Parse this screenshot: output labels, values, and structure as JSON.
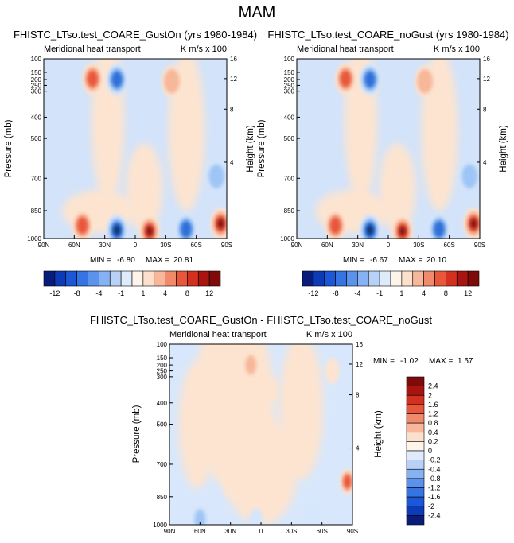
{
  "figure_title": "MAM",
  "colors": {
    "blue_dark": "#08306b",
    "blue_mid": "#2f6fd8",
    "blue_light": "#9ec5f5",
    "blue_pale": "#d6e6fb",
    "white": "#ffffff",
    "red_pale": "#fde4d0",
    "red_light": "#f7b79a",
    "red_mid": "#e8573a",
    "red_dark": "#7f0a0a"
  },
  "chart_data": [
    {
      "type": "heatmap",
      "id": "panel_gust_on",
      "title": "FHISTC_LTso.test_COARE_GustOn (yrs 1980-1984)",
      "left_label": "Meridional heat transport",
      "right_label": "K m/s x 100",
      "xlabel": "",
      "ylabel": "Pressure (mb)",
      "ylabel_right": "Height (km)",
      "x_ticks": [
        "90N",
        "60N",
        "30N",
        "0",
        "30S",
        "60S",
        "90S"
      ],
      "y_ticks": [
        "100",
        "150",
        "200",
        "250",
        "300",
        "400",
        "500",
        "700",
        "850",
        "1000"
      ],
      "y_right_ticks": [
        "16",
        "12",
        "8",
        "4"
      ],
      "stats": {
        "min_label": "MIN =",
        "min_value": "-6.80",
        "max_label": "MAX =",
        "max_value": "20.81"
      },
      "blobs": [
        {
          "lat": 42,
          "p": 195,
          "sign": 1,
          "level": 3
        },
        {
          "lat": 18,
          "p": 200,
          "sign": -1,
          "level": 3
        },
        {
          "lat": -36,
          "p": 215,
          "sign": 1,
          "level": 2
        },
        {
          "lat": 52,
          "p": 930,
          "sign": 1,
          "level": 3
        },
        {
          "lat": 18,
          "p": 955,
          "sign": -1,
          "level": 4
        },
        {
          "lat": -14,
          "p": 960,
          "sign": 1,
          "level": 4
        },
        {
          "lat": -50,
          "p": 950,
          "sign": -1,
          "level": 3
        },
        {
          "lat": -84,
          "p": 920,
          "sign": 1,
          "level": 4
        },
        {
          "lat": -80,
          "p": 690,
          "sign": -1,
          "level": 2
        }
      ]
    },
    {
      "type": "heatmap",
      "id": "panel_no_gust",
      "title": "FHISTC_LTso.test_COARE_noGust (yrs 1980-1984)",
      "left_label": "Meridional heat transport",
      "right_label": "K m/s x 100",
      "xlabel": "",
      "ylabel": "Pressure (mb)",
      "ylabel_right": "Height (km)",
      "x_ticks": [
        "90N",
        "60N",
        "30N",
        "0",
        "30S",
        "60S",
        "90S"
      ],
      "y_ticks": [
        "100",
        "150",
        "200",
        "250",
        "300",
        "400",
        "500",
        "700",
        "850",
        "1000"
      ],
      "y_right_ticks": [
        "16",
        "12",
        "8",
        "4"
      ],
      "stats": {
        "min_label": "MIN =",
        "min_value": "-6.67",
        "max_label": "MAX =",
        "max_value": "20.10"
      },
      "blobs": [
        {
          "lat": 42,
          "p": 195,
          "sign": 1,
          "level": 3
        },
        {
          "lat": 18,
          "p": 200,
          "sign": -1,
          "level": 3
        },
        {
          "lat": -36,
          "p": 215,
          "sign": 1,
          "level": 2
        },
        {
          "lat": 52,
          "p": 930,
          "sign": 1,
          "level": 3
        },
        {
          "lat": 18,
          "p": 955,
          "sign": -1,
          "level": 4
        },
        {
          "lat": -14,
          "p": 960,
          "sign": 1,
          "level": 4
        },
        {
          "lat": -50,
          "p": 950,
          "sign": -1,
          "level": 3
        },
        {
          "lat": -84,
          "p": 920,
          "sign": 1,
          "level": 4
        },
        {
          "lat": -80,
          "p": 690,
          "sign": -1,
          "level": 2
        }
      ]
    },
    {
      "type": "heatmap",
      "id": "panel_difference",
      "title": "FHISTC_LTso.test_COARE_GustOn - FHISTC_LTso.test_COARE_noGust",
      "left_label": "Meridional heat transport",
      "right_label": "K m/s x 100",
      "xlabel": "",
      "ylabel": "Pressure (mb)",
      "ylabel_right": "Height (km)",
      "x_ticks": [
        "90N",
        "60N",
        "30N",
        "0",
        "30S",
        "60S",
        "90S"
      ],
      "y_ticks": [
        "100",
        "150",
        "200",
        "250",
        "300",
        "400",
        "500",
        "700",
        "850",
        "1000"
      ],
      "y_right_ticks": [
        "16",
        "12",
        "8",
        "4"
      ],
      "stats": {
        "min_label": "MIN =",
        "min_value": "-1.02",
        "max_label": "MAX =",
        "max_value": "1.57"
      },
      "blobs": [
        {
          "lat": 40,
          "p": 320,
          "sign": 1,
          "level": 1
        },
        {
          "lat": 10,
          "p": 200,
          "sign": 1,
          "level": 2
        },
        {
          "lat": -10,
          "p": 350,
          "sign": 1,
          "level": 1
        },
        {
          "lat": 55,
          "p": 600,
          "sign": 1,
          "level": 1
        },
        {
          "lat": 30,
          "p": 800,
          "sign": 1,
          "level": 1
        },
        {
          "lat": -40,
          "p": 650,
          "sign": 1,
          "level": 1
        },
        {
          "lat": 60,
          "p": 970,
          "sign": -1,
          "level": 2
        },
        {
          "lat": -50,
          "p": 950,
          "sign": -1,
          "level": 1
        },
        {
          "lat": 5,
          "p": 980,
          "sign": -1,
          "level": 1
        },
        {
          "lat": -85,
          "p": 780,
          "sign": 1,
          "level": 3
        },
        {
          "lat": -70,
          "p": 250,
          "sign": 1,
          "level": 1
        }
      ]
    }
  ],
  "colorbar_top": {
    "labels": [
      "-12",
      "-8",
      "-4",
      "-1",
      "1",
      "4",
      "8",
      "12"
    ],
    "colors": [
      "#0a1c7a",
      "#0d3bb8",
      "#1b57d6",
      "#3575e3",
      "#5b93ec",
      "#86b1f2",
      "#b7d1f7",
      "#dfeafb",
      "#fff4ea",
      "#fde0cb",
      "#f8b79b",
      "#f08a6a",
      "#e8573a",
      "#d3301f",
      "#a8140f",
      "#7f0a0a"
    ]
  },
  "colorbar_diff": {
    "labels": [
      "2.4",
      "2",
      "1.6",
      "1.2",
      "0.8",
      "0.4",
      "0.2",
      "0",
      "-0.2",
      "-0.4",
      "-0.8",
      "-1.2",
      "-1.6",
      "-2",
      "-2.4"
    ],
    "colors": [
      "#7f0a0a",
      "#a8140f",
      "#d3301f",
      "#e8573a",
      "#f08a6a",
      "#f8b79b",
      "#fde0cb",
      "#fff4ea",
      "#dfeafb",
      "#b7d1f7",
      "#86b1f2",
      "#5b93ec",
      "#3575e3",
      "#1b57d6",
      "#0d3bb8",
      "#0a1c7a"
    ]
  }
}
